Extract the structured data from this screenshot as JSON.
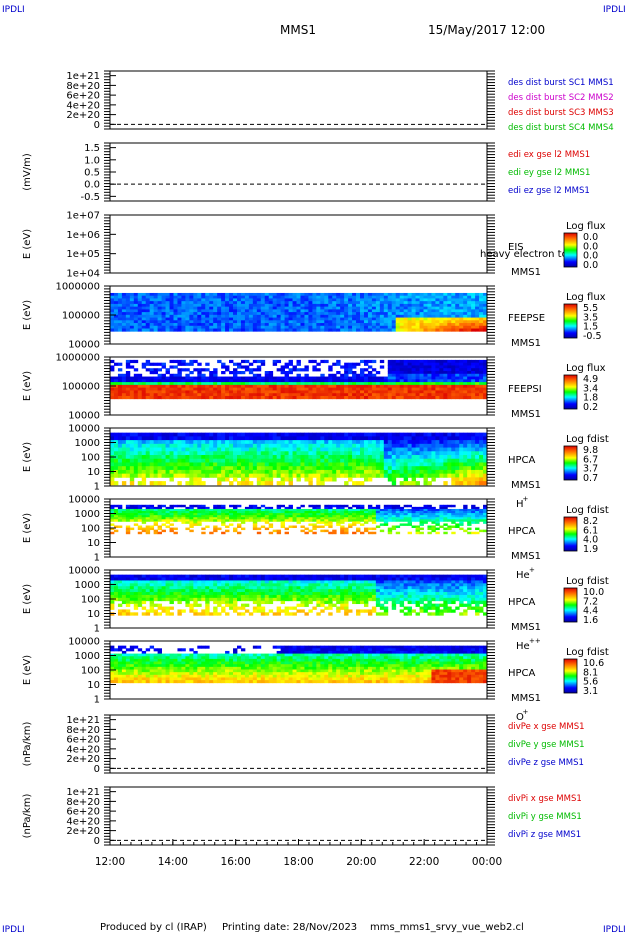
{
  "corner_marks": [
    "IPDLI",
    "IPDLI",
    "IPDLI",
    "IPDLI"
  ],
  "header": {
    "spacecraft": "MMS1",
    "datetime": "15/May/2017 12:00"
  },
  "footer": {
    "produced_by": "Produced by cl (IRAP)",
    "printing_date": "Printing date: 28/Nov/2023",
    "script": "mms_mms1_srvy_vue_web2.cl"
  },
  "colors": {
    "blue": "#0000cc",
    "magenta": "#cc00cc",
    "red": "#dd0000",
    "green": "#00bb00"
  },
  "chart_data": [
    {
      "type": "line",
      "ylabel": "",
      "ticks": [
        "1e+21",
        "8e+20",
        "6e+20",
        "4e+20",
        "2e+20",
        "0"
      ],
      "legend": [
        "des dist burst SC1 MMS1",
        "des dist burst SC2 MMS2",
        "des dist burst SC3 MMS3",
        "des dist burst SC4 MMS4"
      ],
      "legend_colors": [
        "#0000cc",
        "#cc00cc",
        "#dd0000",
        "#00bb00"
      ]
    },
    {
      "type": "line",
      "ylabel": "(mV/m)",
      "ticks": [
        "1.5",
        "1.0",
        "0.5",
        "0.0",
        "-0.5"
      ],
      "legend": [
        "edi ex gse l2 MMS1",
        "edi ey gse l2 MMS1",
        "edi ez gse l2 MMS1"
      ],
      "legend_colors": [
        "#dd0000",
        "#00bb00",
        "#0000cc"
      ]
    },
    {
      "type": "heatmap",
      "ylabel": "E (eV)",
      "ticks": [
        "1e+07",
        "1e+06",
        "1e+05",
        "1e+04"
      ],
      "instrument": [
        "EIS",
        "MMS1"
      ],
      "overlay": "heavy electron to",
      "cbar_title": "Log flux",
      "cbar_ticks": [
        "0.0",
        "0.0",
        "0.0",
        "0.0"
      ]
    },
    {
      "type": "heatmap",
      "ylabel": "E (eV)",
      "ticks": [
        "1000000",
        "100000",
        "10000"
      ],
      "instrument": [
        "FEEPSE",
        "MMS1"
      ],
      "cbar_title": "Log flux",
      "cbar_ticks": [
        "5.5",
        "3.5",
        "1.5",
        "-0.5"
      ]
    },
    {
      "type": "heatmap",
      "ylabel": "E (eV)",
      "ticks": [
        "1000000",
        "100000",
        "10000"
      ],
      "instrument": [
        "FEEPSI",
        "MMS1"
      ],
      "cbar_title": "Log flux",
      "cbar_ticks": [
        "4.9",
        "3.4",
        "1.8",
        "0.2"
      ]
    },
    {
      "type": "heatmap",
      "ylabel": "E (eV)",
      "ticks": [
        "10000",
        "1000",
        "100",
        "10",
        "1"
      ],
      "instrument": [
        "HPCA",
        "MMS1",
        "H",
        "+"
      ],
      "cbar_title": "Log fdist",
      "cbar_ticks": [
        "9.8",
        "6.7",
        "3.7",
        "0.7"
      ]
    },
    {
      "type": "heatmap",
      "ylabel": "E (eV)",
      "ticks": [
        "10000",
        "1000",
        "100",
        "10",
        "1"
      ],
      "instrument": [
        "HPCA",
        "MMS1",
        "He",
        "+"
      ],
      "cbar_title": "Log fdist",
      "cbar_ticks": [
        "8.2",
        "6.1",
        "4.0",
        "1.9"
      ]
    },
    {
      "type": "heatmap",
      "ylabel": "E (eV)",
      "ticks": [
        "10000",
        "1000",
        "100",
        "10",
        "1"
      ],
      "instrument": [
        "HPCA",
        "MMS1",
        "He",
        "++"
      ],
      "cbar_title": "Log fdist",
      "cbar_ticks": [
        "10.0",
        "7.2",
        "4.4",
        "1.6"
      ]
    },
    {
      "type": "heatmap",
      "ylabel": "E (eV)",
      "ticks": [
        "10000",
        "1000",
        "100",
        "10",
        "1"
      ],
      "instrument": [
        "HPCA",
        "MMS1",
        "O",
        "+"
      ],
      "cbar_title": "Log fdist",
      "cbar_ticks": [
        "10.6",
        "8.1",
        "5.6",
        "3.1"
      ]
    },
    {
      "type": "line",
      "ylabel": "(nPa/km)",
      "ticks": [
        "1e+21",
        "8e+20",
        "6e+20",
        "4e+20",
        "2e+20",
        "0"
      ],
      "legend": [
        "divPe x gse MMS1",
        "divPe y gse MMS1",
        "divPe z gse MMS1"
      ],
      "legend_colors": [
        "#dd0000",
        "#00bb00",
        "#0000cc"
      ]
    },
    {
      "type": "line",
      "ylabel": "(nPa/km)",
      "ticks": [
        "1e+21",
        "8e+20",
        "6e+20",
        "4e+20",
        "2e+20",
        "0"
      ],
      "legend": [
        "divPi x gse MMS1",
        "divPi y gse MMS1",
        "divPi z gse MMS1"
      ],
      "legend_colors": [
        "#dd0000",
        "#00bb00",
        "#0000cc"
      ]
    }
  ],
  "x_axis": {
    "ticks": [
      "12:00",
      "14:00",
      "16:00",
      "18:00",
      "20:00",
      "22:00",
      "00:00"
    ]
  }
}
